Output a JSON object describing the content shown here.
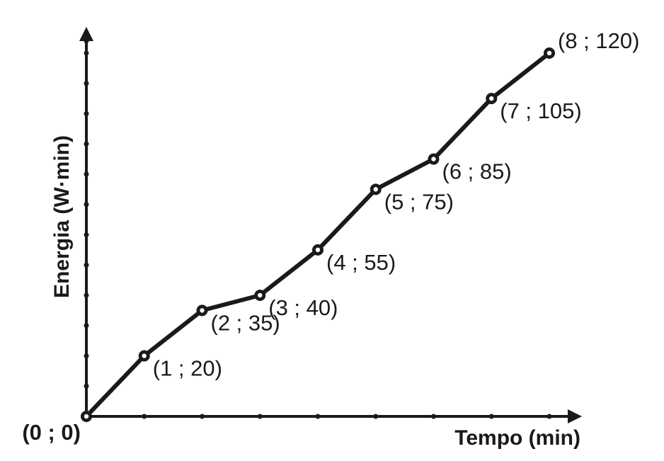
{
  "chart_data": {
    "type": "line",
    "xlabel": "Tempo (min)",
    "ylabel": "Energia (W·min)",
    "xlim": [
      0,
      8
    ],
    "ylim": [
      0,
      120
    ],
    "grid": false,
    "colors": {
      "ink": "#1a1a1a",
      "background": "#ffffff"
    },
    "series": [
      {
        "x": [
          0,
          1,
          2,
          3,
          4,
          5,
          6,
          7,
          8
        ],
        "values": [
          0,
          20,
          35,
          40,
          55,
          75,
          85,
          105,
          120
        ],
        "labels": [
          "(0 ; 0)",
          "(1 ; 20)",
          "(2 ; 35)",
          "(3 ; 40)",
          "(4 ; 55)",
          "(5 ; 75)",
          "(6 ; 85)",
          "(7 ; 105)",
          "(8 ; 120)"
        ]
      }
    ]
  }
}
